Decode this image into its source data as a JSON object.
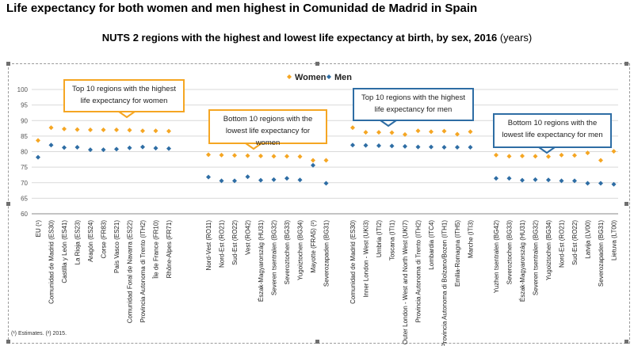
{
  "headline": "Life expectancy for both women and men highest in Comunidad de Madrid in Spain",
  "subtitle_bold": "NUTS 2 regions with the highest and lowest life expectancy at birth, by sex, 2016",
  "subtitle_unit": "(years)",
  "footnote": "(¹) Estimates. (²) 2015.",
  "colors": {
    "women": "#f5a623",
    "men": "#2e6da4",
    "callout_orange": "#f5a623",
    "callout_blue": "#2e6da4"
  },
  "chart_data": {
    "type": "scatter",
    "ylim": [
      60,
      100
    ],
    "yticks": [
      60,
      65,
      70,
      75,
      80,
      85,
      90,
      95,
      100
    ],
    "grid": true,
    "legend_position": "top-right",
    "series": [
      {
        "name": "Women",
        "marker": "diamond"
      },
      {
        "name": "Men",
        "marker": "diamond"
      }
    ],
    "groups": [
      {
        "callout": "Top 10 regions with the highest life expectancy for women",
        "categories": [
          {
            "label": "EU (¹)",
            "women": 83.6,
            "men": 78.2
          },
          {
            "label": "Comunidad de Madrid (ES30)",
            "women": 87.7,
            "men": 82.1
          },
          {
            "label": "Castilla y León (ES41)",
            "women": 87.3,
            "men": 81.3
          },
          {
            "label": "La Rioja (ES23)",
            "women": 87.1,
            "men": 81.4
          },
          {
            "label": "Aragón (ES24)",
            "women": 87.0,
            "men": 80.6
          },
          {
            "label": "Corse (FR83)",
            "women": 87.0,
            "men": 80.6
          },
          {
            "label": "País Vasco (ES21)",
            "women": 87.0,
            "men": 80.8
          },
          {
            "label": "Comunidad Foral de Navarra (ES22)",
            "women": 86.9,
            "men": 81.2
          },
          {
            "label": "Provincia Autonoma di Trento (ITH2)",
            "women": 86.7,
            "men": 81.5
          },
          {
            "label": "Île de France (FR10)",
            "women": 86.7,
            "men": 81.1
          },
          {
            "label": "Rhône-Alpes (FR71)",
            "women": 86.6,
            "men": 81.0
          }
        ]
      },
      {
        "callout": "Bottom 10 regions with the lowest life expectancy for women",
        "categories": [
          {
            "label": "Nord-Vest (RO11)",
            "women": 79.0,
            "men": 71.8
          },
          {
            "label": "Nord-Est (RO21)",
            "women": 78.9,
            "men": 70.6
          },
          {
            "label": "Sud-Est (RO22)",
            "women": 78.8,
            "men": 70.6
          },
          {
            "label": "Vest (RO42)",
            "women": 78.7,
            "men": 71.9
          },
          {
            "label": "Észak-Magyarország (HU31)",
            "women": 78.6,
            "men": 70.8
          },
          {
            "label": "Severen tsentralen (BG32)",
            "women": 78.5,
            "men": 71.0
          },
          {
            "label": "Severoztochen (BG33)",
            "women": 78.5,
            "men": 71.4
          },
          {
            "label": "Yugoiztochen (BG34)",
            "women": 78.4,
            "men": 70.9
          },
          {
            "label": "Mayotte (FRA5) (²)",
            "women": 77.2,
            "men": 75.6
          },
          {
            "label": "Severozapaden (BG31)",
            "women": 77.2,
            "men": 69.8
          }
        ]
      },
      {
        "callout": "Top 10 regions with the highest life expectancy for men",
        "categories": [
          {
            "label": "Comunidad de Madrid (ES30)",
            "women": 87.7,
            "men": 82.1
          },
          {
            "label": "Inner London - West (UKI3)",
            "women": 86.2,
            "men": 82.0
          },
          {
            "label": "Umbria (ITI2)",
            "women": 86.2,
            "men": 81.9
          },
          {
            "label": "Toscana (ITI1)",
            "women": 86.1,
            "men": 81.8
          },
          {
            "label": "Outer London - West and North West (UKI7)",
            "women": 85.5,
            "men": 81.7
          },
          {
            "label": "Provincia Autonoma di Trento (ITH2)",
            "women": 86.7,
            "men": 81.5
          },
          {
            "label": "Lombardia (ITC4)",
            "women": 86.4,
            "men": 81.5
          },
          {
            "label": "Provincia Autonoma di Bolzano/Bozen (ITH1)",
            "women": 86.6,
            "men": 81.4
          },
          {
            "label": "Emilia-Romagna (ITH5)",
            "women": 85.6,
            "men": 81.4
          },
          {
            "label": "Marche (ITI3)",
            "women": 86.4,
            "men": 81.4
          }
        ]
      },
      {
        "callout": "Bottom 10 regions with the lowest life expectancy for men",
        "categories": [
          {
            "label": "Yuzhen tsentralen (BG42)",
            "women": 78.9,
            "men": 71.4
          },
          {
            "label": "Severoztochen (BG33)",
            "women": 78.5,
            "men": 71.4
          },
          {
            "label": "Észak-Magyarország (HU31)",
            "women": 78.6,
            "men": 70.8
          },
          {
            "label": "Severen tsentralen (BG32)",
            "women": 78.5,
            "men": 71.0
          },
          {
            "label": "Yugoiztochen (BG34)",
            "women": 78.4,
            "men": 70.9
          },
          {
            "label": "Nord-Est (RO21)",
            "women": 78.9,
            "men": 70.6
          },
          {
            "label": "Sud-Est (RO22)",
            "women": 78.8,
            "men": 70.6
          },
          {
            "label": "Latvija (LV00)",
            "women": 79.6,
            "men": 69.8
          },
          {
            "label": "Severozapaden (BG31)",
            "women": 77.2,
            "men": 69.8
          },
          {
            "label": "Lietuva (LT00)",
            "women": 80.1,
            "men": 69.5
          }
        ]
      }
    ]
  }
}
